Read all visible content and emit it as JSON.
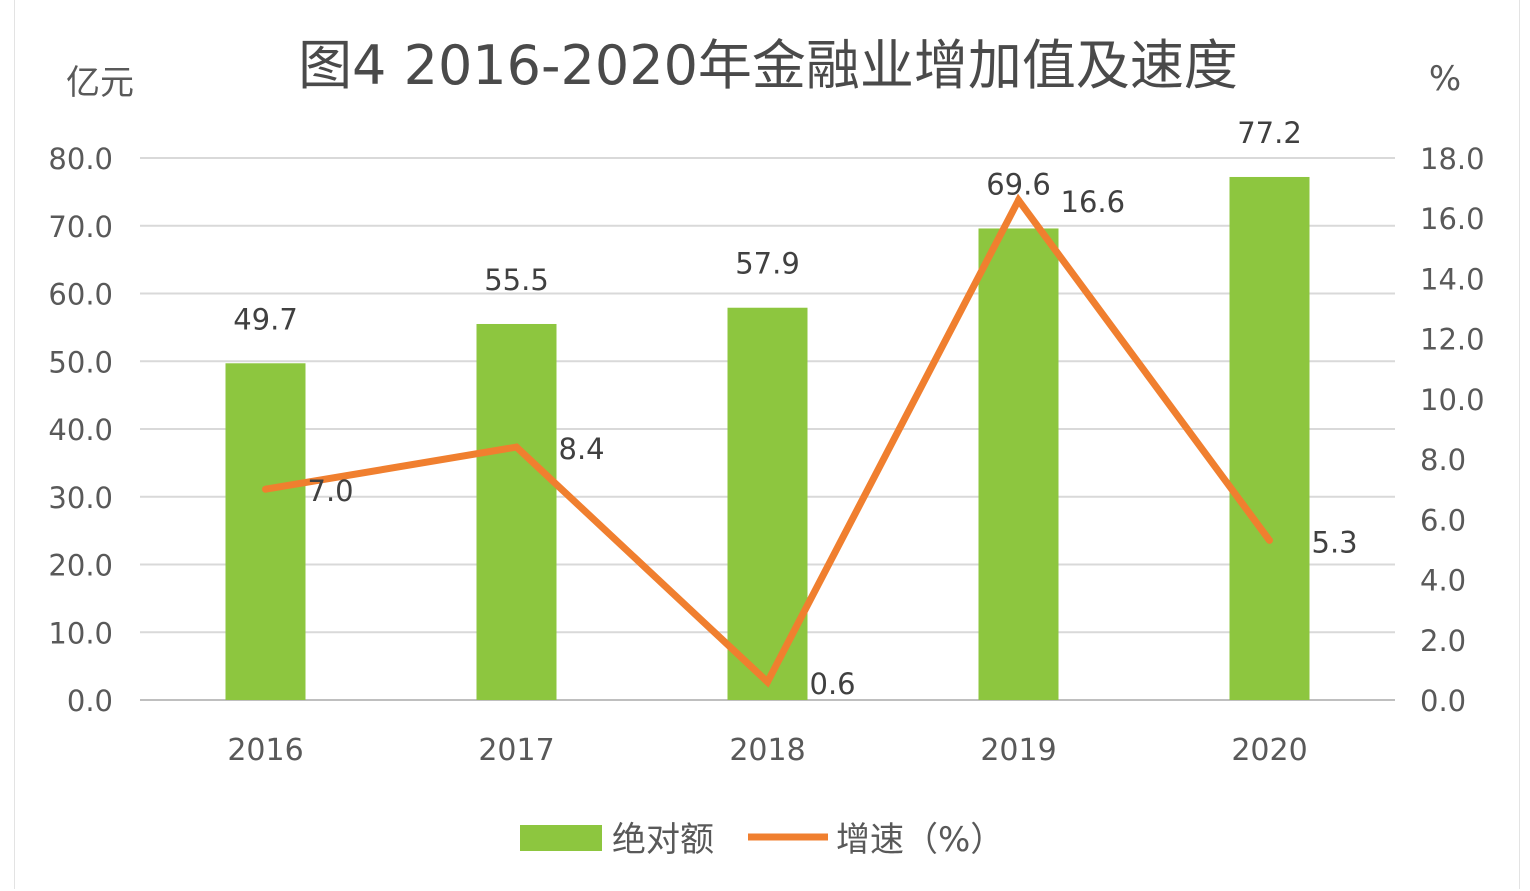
{
  "chart_data": {
    "type": "bar+line",
    "title": "图4  2016-2020年金融业增加值及速度",
    "y_left_unit": "亿元",
    "y_right_unit": "%",
    "categories": [
      "2016",
      "2017",
      "2018",
      "2019",
      "2020"
    ],
    "y_left_ticks": [
      "80.0",
      "70.0",
      "60.0",
      "50.0",
      "40.0",
      "30.0",
      "20.0",
      "10.0",
      "0.0"
    ],
    "y_right_ticks": [
      "18.0",
      "16.0",
      "14.0",
      "12.0",
      "10.0",
      "8.0",
      "6.0",
      "4.0",
      "2.0",
      "0.0"
    ],
    "y_left_lim": [
      0,
      80
    ],
    "y_right_lim": [
      0,
      18
    ],
    "grid": true,
    "legend_position": "bottom",
    "series": [
      {
        "name": "绝对额",
        "type": "bar",
        "axis": "left",
        "color": "#8dc63f",
        "values": [
          49.7,
          55.5,
          57.9,
          69.6,
          77.2
        ],
        "labels": [
          "49.7",
          "55.5",
          "57.9",
          "69.6",
          "77.2"
        ]
      },
      {
        "name": "增速（%）",
        "type": "line",
        "axis": "right",
        "color": "#f07f2f",
        "values": [
          7.0,
          8.4,
          0.6,
          16.6,
          5.3
        ],
        "labels": [
          "7.0",
          "8.4",
          "0.6",
          "16.6",
          "5.3"
        ]
      }
    ]
  }
}
